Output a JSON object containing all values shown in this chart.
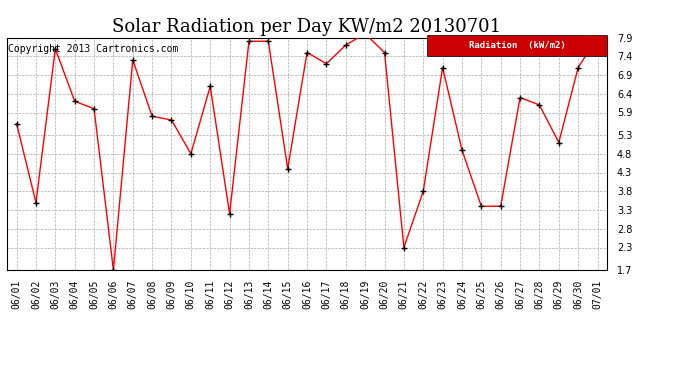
{
  "title": "Solar Radiation per Day KW/m2 20130701",
  "copyright": "Copyright 2013 Cartronics.com",
  "legend_label": "Radiation  (kW/m2)",
  "dates": [
    "06/01",
    "06/02",
    "06/03",
    "06/04",
    "06/05",
    "06/06",
    "06/07",
    "06/08",
    "06/09",
    "06/10",
    "06/11",
    "06/12",
    "06/13",
    "06/14",
    "06/15",
    "06/16",
    "06/17",
    "06/18",
    "06/19",
    "06/20",
    "06/21",
    "06/22",
    "06/23",
    "06/24",
    "06/25",
    "06/26",
    "06/27",
    "06/28",
    "06/29",
    "06/30",
    "07/01"
  ],
  "values": [
    5.6,
    3.5,
    7.6,
    6.2,
    6.0,
    1.7,
    7.3,
    5.8,
    5.7,
    4.8,
    6.6,
    3.2,
    7.8,
    7.8,
    4.4,
    7.5,
    7.2,
    7.7,
    8.0,
    7.5,
    2.3,
    3.8,
    7.1,
    4.9,
    3.4,
    3.4,
    6.3,
    6.1,
    5.1,
    7.1,
    7.9
  ],
  "line_color": "red",
  "marker_color": "black",
  "bg_color": "#ffffff",
  "plot_bg_color": "#ffffff",
  "grid_color": "#aaaaaa",
  "ylim_min": 1.7,
  "ylim_max": 7.9,
  "yticks": [
    1.7,
    2.3,
    2.8,
    3.3,
    3.8,
    4.3,
    4.8,
    5.3,
    5.9,
    6.4,
    6.9,
    7.4,
    7.9
  ],
  "title_fontsize": 13,
  "copyright_fontsize": 7,
  "tick_fontsize": 7,
  "legend_bg": "#cc0000",
  "legend_text_color": "#ffffff"
}
